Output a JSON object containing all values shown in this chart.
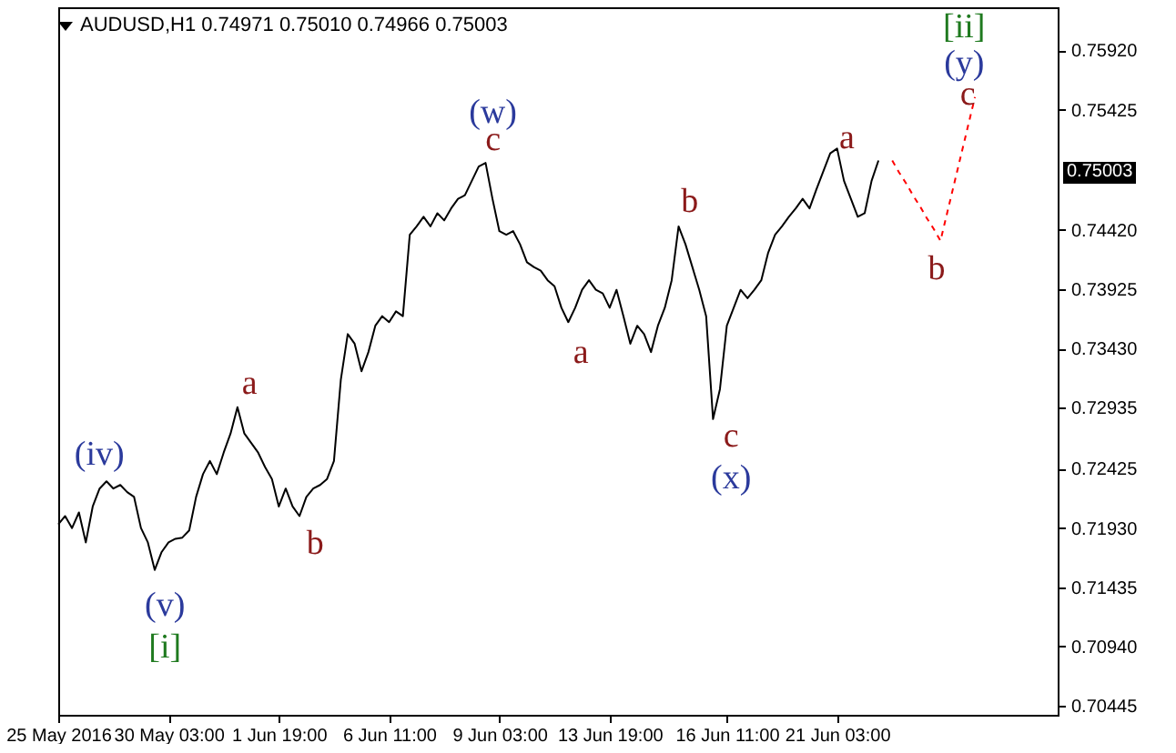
{
  "chart_data": {
    "type": "line",
    "title": "AUDUSD,H1  0.74971 0.75010 0.74966 0.75003",
    "categories": [
      "25 May 2016",
      null,
      null,
      null,
      null,
      null,
      null,
      null,
      null,
      null,
      null,
      null,
      null,
      null,
      null,
      null,
      "30 May 03:00",
      null,
      null,
      null,
      null,
      null,
      null,
      null,
      null,
      null,
      null,
      null,
      null,
      null,
      null,
      null,
      "1 Jun 19:00",
      null,
      null,
      null,
      null,
      null,
      null,
      null,
      null,
      null,
      null,
      null,
      null,
      null,
      null,
      null,
      "6 Jun 11:00",
      null,
      null,
      null,
      null,
      null,
      null,
      null,
      null,
      null,
      null,
      null,
      null,
      null,
      null,
      null,
      "9 Jun 03:00",
      null,
      null,
      null,
      null,
      null,
      null,
      null,
      null,
      null,
      null,
      null,
      null,
      null,
      null,
      null,
      "13 Jun 19:00",
      null,
      null,
      null,
      null,
      null,
      null,
      null,
      null,
      null,
      null,
      null,
      null,
      null,
      null,
      null,
      null,
      "16 Jun 11:00",
      null,
      null,
      null,
      null,
      null,
      null,
      null,
      null,
      null,
      null,
      null,
      null,
      null,
      null,
      null,
      "21 Jun 03:00",
      null,
      null,
      null,
      null,
      null,
      null,
      null,
      null,
      null,
      null,
      null,
      null,
      null,
      null,
      null,
      null,
      null,
      null,
      null,
      null,
      null,
      null,
      null,
      null,
      null,
      null,
      null,
      null,
      null,
      null,
      null,
      null
    ],
    "ylim": [
      0.7037,
      0.7628
    ],
    "yticks": [
      {
        "value": 0.7592,
        "label": "0.75920"
      },
      {
        "value": 0.75425,
        "label": "0.75425"
      },
      {
        "value": 0.7442,
        "label": "0.74420"
      },
      {
        "value": 0.73925,
        "label": "0.73925"
      },
      {
        "value": 0.7343,
        "label": "0.73430"
      },
      {
        "value": 0.72935,
        "label": "0.72935"
      },
      {
        "value": 0.72425,
        "label": "0.72425"
      },
      {
        "value": 0.7193,
        "label": "0.71930"
      },
      {
        "value": 0.71435,
        "label": "0.71435"
      },
      {
        "value": 0.7094,
        "label": "0.70940"
      },
      {
        "value": 0.70445,
        "label": "0.70445"
      }
    ],
    "grid": false,
    "series": [
      {
        "color": "#000000",
        "values": [
          0.7196,
          0.7203,
          0.7193,
          0.7206,
          0.7181,
          0.7211,
          0.7226,
          0.7232,
          0.7226,
          0.7229,
          0.7223,
          0.7219,
          0.7193,
          0.7181,
          0.7158,
          0.7173,
          0.7181,
          0.7184,
          0.7185,
          0.7191,
          0.7219,
          0.7238,
          0.7249,
          0.7238,
          0.7256,
          0.7272,
          0.7294,
          0.7272,
          0.7264,
          0.7256,
          0.7244,
          0.7234,
          0.7211,
          0.7226,
          0.7211,
          0.7203,
          0.7219,
          0.7226,
          0.7229,
          0.7234,
          0.7249,
          0.7317,
          0.7355,
          0.7347,
          0.7324,
          0.734,
          0.7362,
          0.737,
          0.7365,
          0.7374,
          0.737,
          0.7438,
          0.7445,
          0.7453,
          0.7445,
          0.7456,
          0.745,
          0.746,
          0.7468,
          0.7471,
          0.7483,
          0.7495,
          0.7498,
          0.7468,
          0.7441,
          0.7438,
          0.7441,
          0.743,
          0.7415,
          0.7411,
          0.7408,
          0.74,
          0.7395,
          0.7377,
          0.7365,
          0.7377,
          0.7392,
          0.74,
          0.7392,
          0.7389,
          0.7377,
          0.7392,
          0.737,
          0.7347,
          0.7362,
          0.7355,
          0.734,
          0.7362,
          0.7377,
          0.74,
          0.7445,
          0.743,
          0.7411,
          0.7392,
          0.737,
          0.7284,
          0.7309,
          0.7362,
          0.7377,
          0.7392,
          0.7385,
          0.7392,
          0.74,
          0.7423,
          0.7438,
          0.7445,
          0.7453,
          0.746,
          0.7468,
          0.746,
          0.7476,
          0.7491,
          0.7506,
          0.751,
          0.7483,
          0.7468,
          0.7453,
          0.7456,
          0.7483,
          0.75,
          null,
          null,
          null,
          null,
          null,
          null,
          null,
          null,
          null,
          null,
          null,
          null,
          null,
          null,
          null,
          null,
          null,
          null,
          null,
          null,
          null,
          null,
          null,
          null,
          null,
          null
        ]
      },
      {
        "type": "line",
        "color": "#ff0000",
        "line_style": "dashed",
        "values": [
          null,
          null,
          null,
          null,
          null,
          null,
          null,
          null,
          null,
          null,
          null,
          null,
          null,
          null,
          null,
          null,
          null,
          null,
          null,
          null,
          null,
          null,
          null,
          null,
          null,
          null,
          null,
          null,
          null,
          null,
          null,
          null,
          null,
          null,
          null,
          null,
          null,
          null,
          null,
          null,
          null,
          null,
          null,
          null,
          null,
          null,
          null,
          null,
          null,
          null,
          null,
          null,
          null,
          null,
          null,
          null,
          null,
          null,
          null,
          null,
          null,
          null,
          null,
          null,
          null,
          null,
          null,
          null,
          null,
          null,
          null,
          null,
          null,
          null,
          null,
          null,
          null,
          null,
          null,
          null,
          null,
          null,
          null,
          null,
          null,
          null,
          null,
          null,
          null,
          null,
          null,
          null,
          null,
          null,
          null,
          null,
          null,
          null,
          null,
          null,
          null,
          null,
          null,
          null,
          null,
          null,
          null,
          null,
          null,
          null,
          null,
          null,
          null,
          null,
          null,
          null,
          null,
          null,
          null,
          null,
          null,
          0.75,
          0.749,
          0.7481,
          0.7471,
          0.7462,
          0.7452,
          0.7443,
          0.7433,
          0.7457,
          0.7481,
          0.7505,
          0.7529,
          0.7553,
          null,
          null,
          null,
          null,
          null,
          null,
          null,
          null,
          null,
          null,
          null,
          null
        ]
      }
    ],
    "annotations": [
      "(iv)",
      "(v)",
      "[i]",
      "a",
      "b",
      "(w)",
      "c",
      "a",
      "b",
      "c",
      "(x)",
      "a",
      "b",
      "c",
      "(y)",
      "[ii]",
      "0.75003"
    ]
  }
}
